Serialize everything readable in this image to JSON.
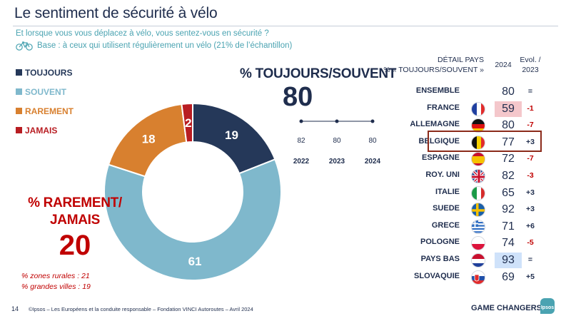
{
  "title": "Le sentiment de sécurité à vélo",
  "question": "Et lorsque vous vous déplacez à vélo, vous sentez-vous en sécurité ?",
  "base": "Base : à ceux qui utilisent régulièrement un vélo (21% de l’échantillon)",
  "icons": {
    "bike": "bicycle-icon"
  },
  "colors": {
    "toujours": "#253859",
    "souvent": "#7fb8cc",
    "rarement": "#d8802f",
    "jamais": "#b81d22",
    "title": "#1f2d4d",
    "accent": "#4aa3b1",
    "negative": "#c00000"
  },
  "ts_title": "% TOUJOURS/SOUVENT",
  "ts_value": "80",
  "rj_title_1": "% RAREMENT/",
  "rj_title_2": "JAMAIS",
  "rj_value": "20",
  "note_rural": "% zones rurales : 21",
  "note_cities": "% grandes villes : 19",
  "table": {
    "header_label_1": "DÉTAIL PAYS",
    "header_label_2": "% « TOUJOURS/SOUVENT »",
    "header_year": "2024",
    "header_evol_1": "Evol. /",
    "header_evol_2": "2023",
    "rows": [
      {
        "name": "ENSEMBLE",
        "flag": null,
        "value": "80",
        "evol": "=",
        "highlight": null
      },
      {
        "name": "FRANCE",
        "flag": "fr",
        "value": "59",
        "evol": "-1",
        "highlight": "red"
      },
      {
        "name": "ALLEMAGNE",
        "flag": "de",
        "value": "80",
        "evol": "-7",
        "highlight": null
      },
      {
        "name": "BELGIQUE",
        "flag": "be",
        "value": "77",
        "evol": "+3",
        "highlight": null
      },
      {
        "name": "ESPAGNE",
        "flag": "es",
        "value": "72",
        "evol": "-7",
        "highlight": null
      },
      {
        "name": "ROY. UNI",
        "flag": "uk",
        "value": "82",
        "evol": "-3",
        "highlight": null
      },
      {
        "name": "ITALIE",
        "flag": "it",
        "value": "65",
        "evol": "+3",
        "highlight": null
      },
      {
        "name": "SUEDE",
        "flag": "se",
        "value": "92",
        "evol": "+3",
        "highlight": null
      },
      {
        "name": "GRECE",
        "flag": "gr",
        "value": "71",
        "evol": "+6",
        "highlight": null
      },
      {
        "name": "POLOGNE",
        "flag": "pl",
        "value": "74",
        "evol": "-5",
        "highlight": null
      },
      {
        "name": "PAYS BAS",
        "flag": "nl",
        "value": "93",
        "evol": "=",
        "highlight": "blue"
      },
      {
        "name": "SLOVAQUIE",
        "flag": "sk",
        "value": "69",
        "evol": "+5",
        "highlight": null
      }
    ]
  },
  "footer": {
    "page": "14",
    "source": "©Ipsos – Les Européens et la conduite responsable – Fondation VINCI Autoroutes – Avril 2024",
    "tagline": "GAME CHANGERS",
    "logo": "Ipsos"
  },
  "chart_data": [
    {
      "type": "pie",
      "variant": "donut",
      "title": "",
      "categories": [
        "TOUJOURS",
        "SOUVENT",
        "RAREMENT",
        "JAMAIS"
      ],
      "values": [
        19,
        61,
        18,
        2
      ],
      "legend": "left"
    },
    {
      "type": "line",
      "title": "% TOUJOURS/SOUVENT",
      "x": [
        "2022",
        "2023",
        "2024"
      ],
      "values": [
        82,
        80,
        80
      ]
    }
  ]
}
